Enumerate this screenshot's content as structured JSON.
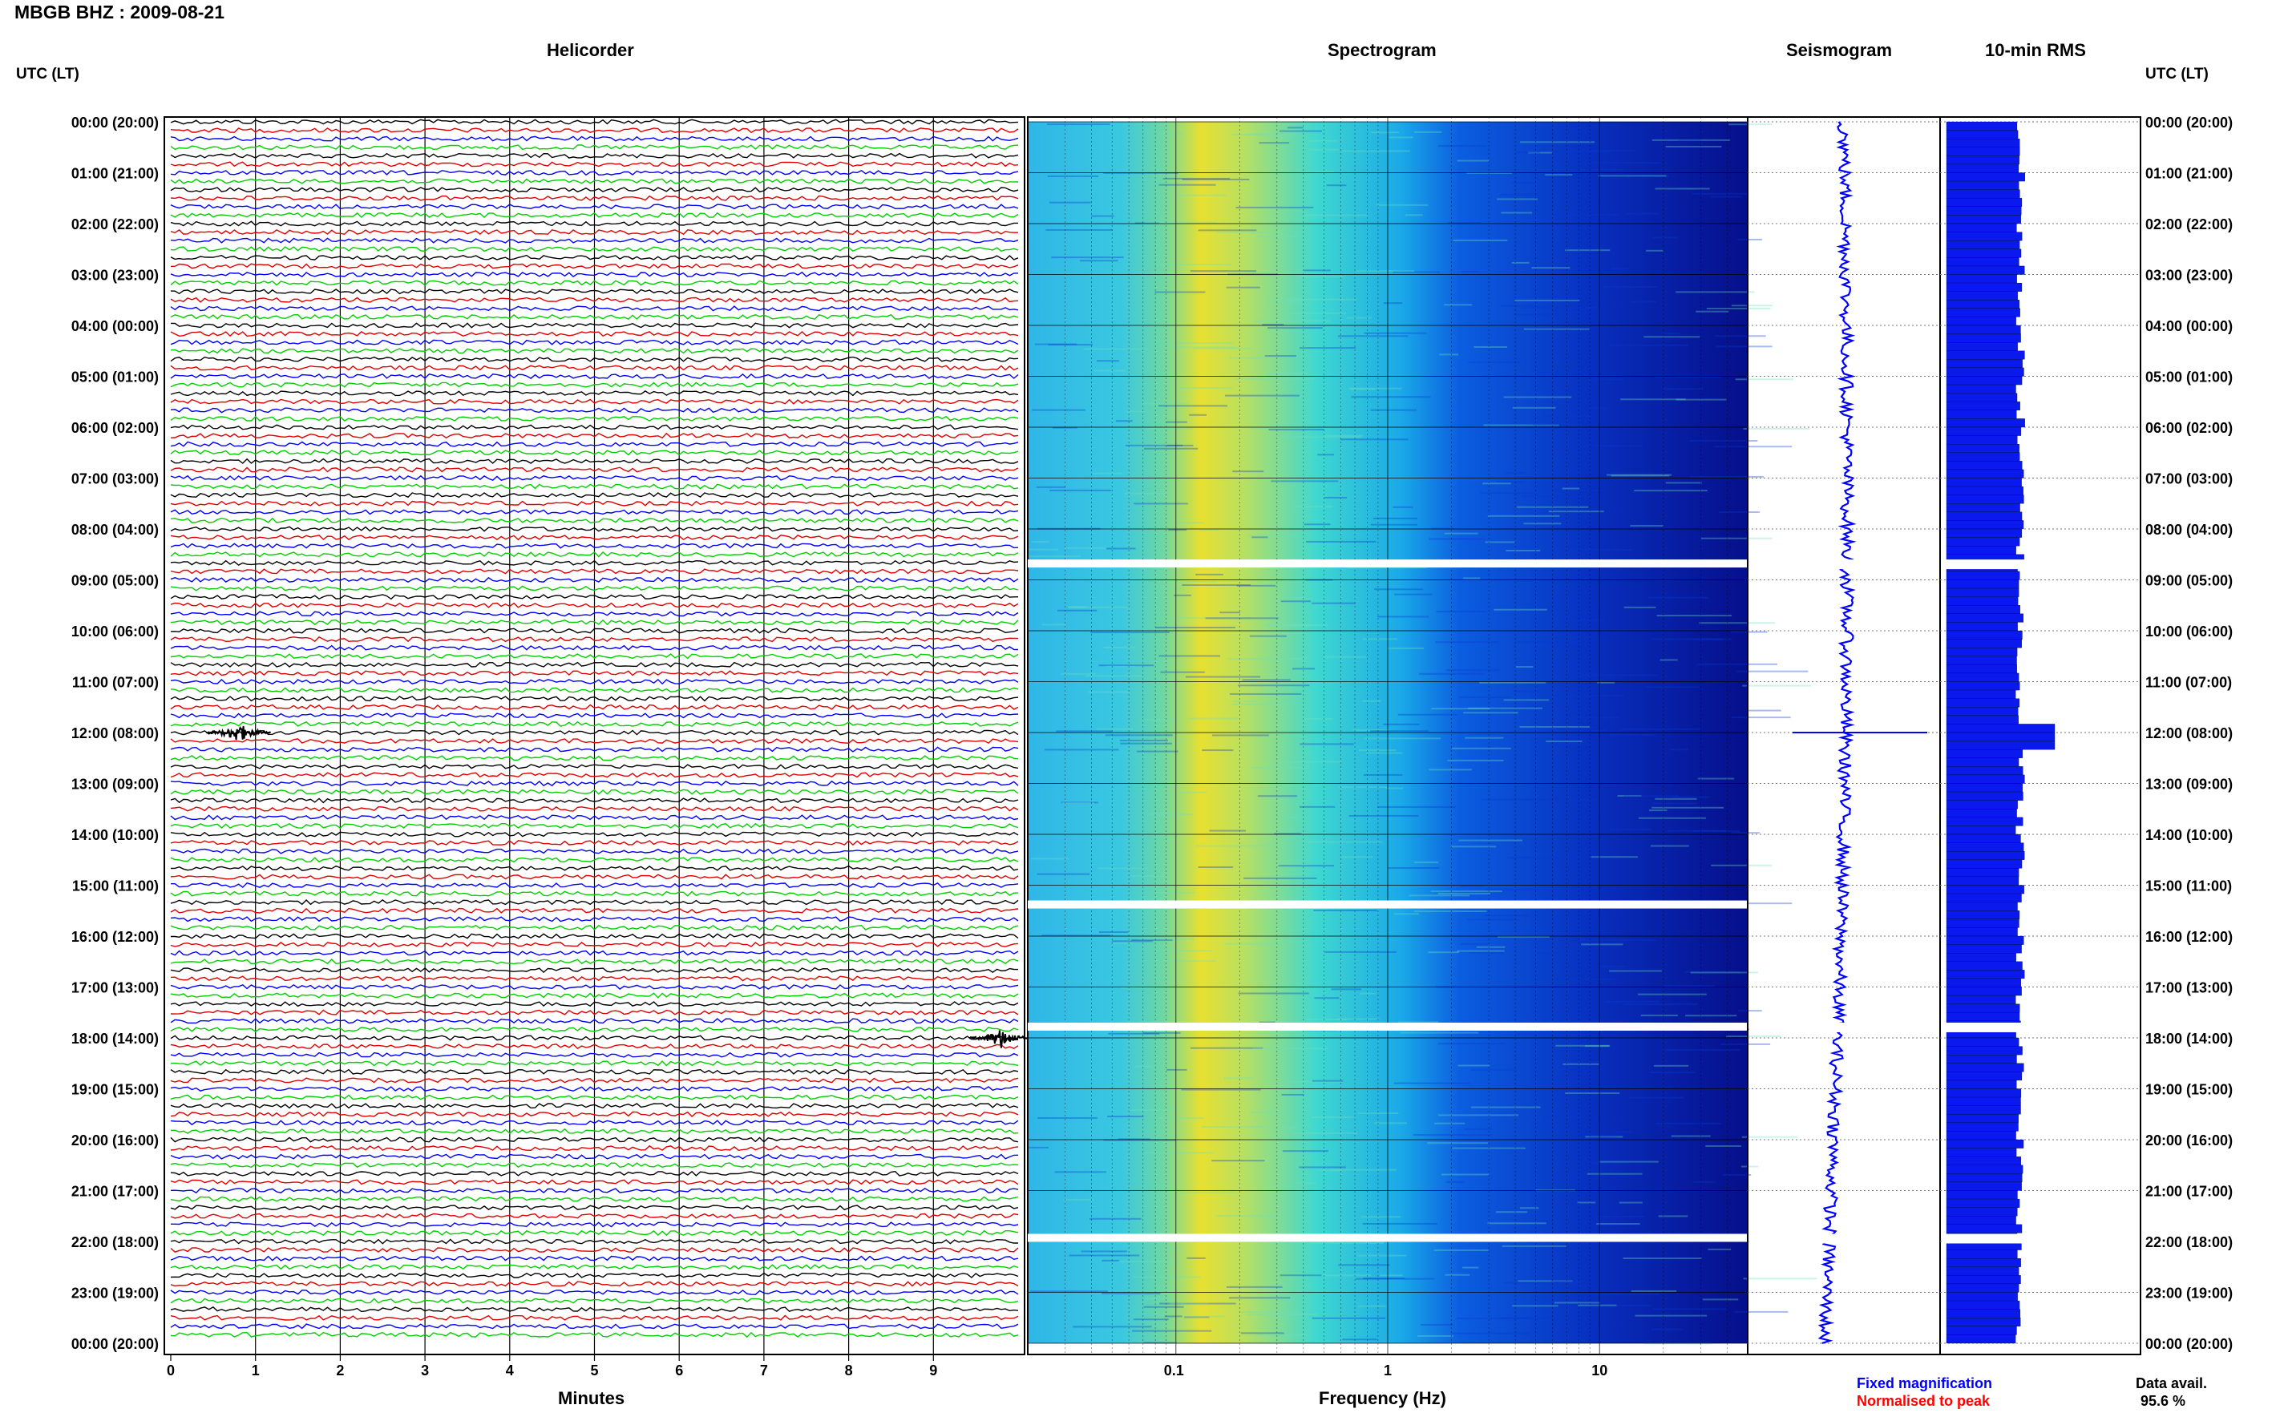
{
  "header": {
    "station_title": "MBGB BHZ : 2009-08-21",
    "utc_lt_left": "UTC (LT)",
    "utc_lt_right": "UTC (LT)"
  },
  "panels": {
    "helicorder": "Helicorder",
    "spectrogram": "Spectrogram",
    "seismogram": "Seismogram",
    "rms": "10-min RMS"
  },
  "time_labels": [
    "00:00 (20:00)",
    "01:00 (21:00)",
    "02:00 (22:00)",
    "03:00 (23:00)",
    "04:00 (00:00)",
    "05:00 (01:00)",
    "06:00 (02:00)",
    "07:00 (03:00)",
    "08:00 (04:00)",
    "09:00 (05:00)",
    "10:00 (06:00)",
    "11:00 (07:00)",
    "12:00 (08:00)",
    "13:00 (09:00)",
    "14:00 (10:00)",
    "15:00 (11:00)",
    "16:00 (12:00)",
    "17:00 (13:00)",
    "18:00 (14:00)",
    "19:00 (15:00)",
    "20:00 (16:00)",
    "21:00 (17:00)",
    "22:00 (18:00)",
    "23:00 (19:00)",
    "00:00 (20:00)"
  ],
  "footer": {
    "minutes_label": "Minutes",
    "frequency_label": "Frequency (Hz)",
    "legend_fixed": "Fixed magnification",
    "legend_normalised": "Normalised to peak",
    "data_avail_label": "Data avail.",
    "data_avail_value": "95.6 %"
  },
  "colors": {
    "trace_black": "#000000",
    "trace_red": "#e00000",
    "trace_blue": "#0000ff",
    "trace_green": "#00d000",
    "fixed_legend": "#0000ff",
    "normalised_legend": "#ff0000"
  },
  "chart_data": [
    {
      "type": "line",
      "name": "helicorder",
      "xlabel": "Minutes",
      "xlim": [
        0,
        10
      ],
      "x_ticks": [
        "0",
        "1",
        "2",
        "3",
        "4",
        "5",
        "6",
        "7",
        "8",
        "9"
      ],
      "rows_per_hour": 6,
      "rows": 144,
      "color_cycle": [
        "black",
        "red",
        "blue",
        "green"
      ],
      "events": [
        {
          "hour_row": 72,
          "minute": 0.8,
          "note": "large event near 12:00"
        },
        {
          "hour_row": 108,
          "minute": 9.8,
          "note": "burst near 18:00"
        }
      ]
    },
    {
      "type": "heatmap",
      "name": "spectrogram",
      "xlabel": "Frequency (Hz)",
      "xscale": "log",
      "xlim": [
        0.02,
        50
      ],
      "x_ticks": [
        "0.1",
        "1",
        "10"
      ],
      "gaps_hours": [
        8.6,
        15.3,
        17.7,
        21.85
      ]
    },
    {
      "type": "line",
      "name": "seismogram",
      "gaps_hours": [
        8.6,
        17.7,
        21.85
      ]
    },
    {
      "type": "bar",
      "name": "10-min RMS",
      "gaps_hours": [
        8.6,
        17.7,
        21.85
      ],
      "peak_hour": 12.0
    }
  ]
}
